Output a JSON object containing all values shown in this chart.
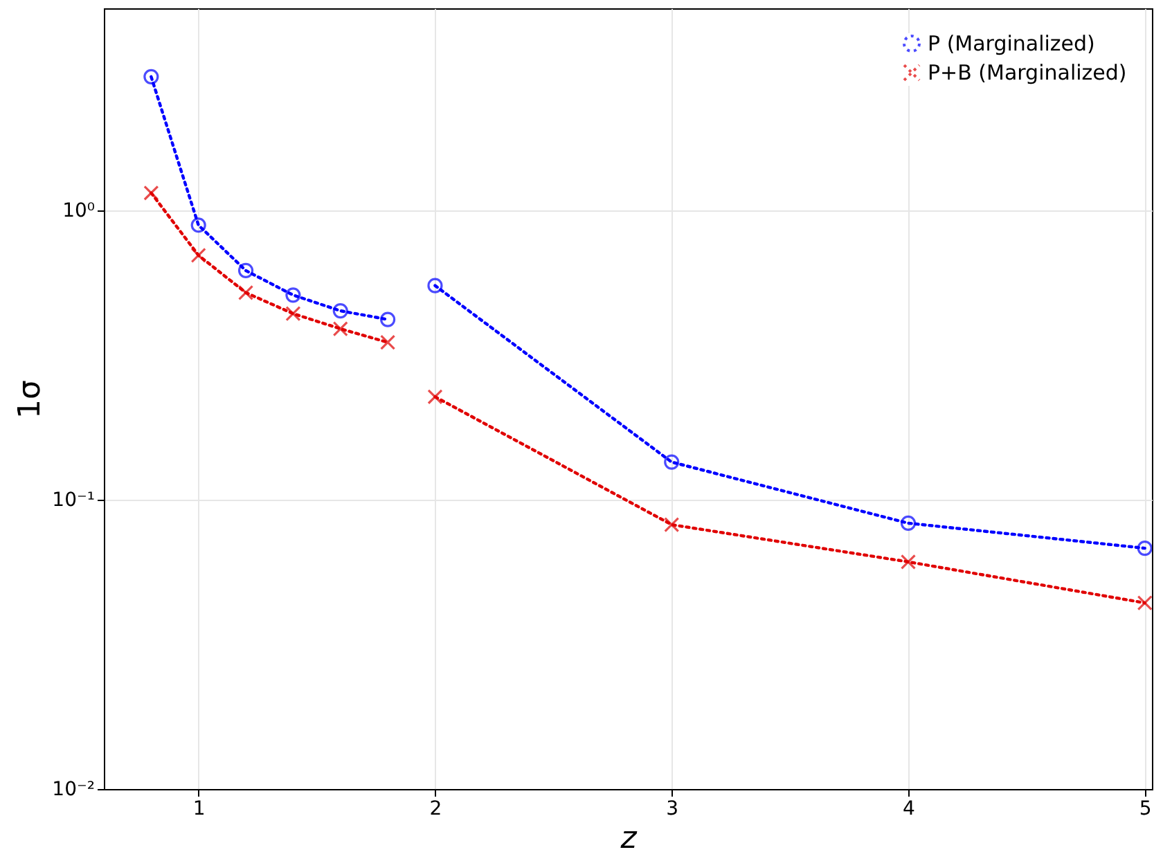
{
  "chart_data": {
    "type": "line",
    "xlabel": "z",
    "ylabel": "1σ",
    "xlim": [
      0.6,
      5.03
    ],
    "xticks": [
      1,
      2,
      3,
      4,
      5
    ],
    "ylim": [
      0.01,
      5
    ],
    "yticks": [
      {
        "value": 0.01,
        "label": "10⁻²"
      },
      {
        "value": 0.1,
        "label": "10⁻¹"
      },
      {
        "value": 1,
        "label": "10⁰"
      }
    ],
    "log": "y",
    "grid": true,
    "legend": "top right",
    "line_style": "dotted",
    "series": [
      {
        "name": "P (Marginalized)",
        "color": "#0000ff",
        "marker": "circle",
        "x": [
          0.8,
          1.0,
          1.2,
          1.4,
          1.6,
          1.8,
          1.9,
          2,
          3,
          4,
          5
        ],
        "values": [
          2.9,
          0.89,
          0.62,
          0.51,
          0.45,
          0.42,
          null,
          0.55,
          0.135,
          0.083,
          0.068
        ]
      },
      {
        "name": "P+B (Marginalized)",
        "color": "#e00000",
        "marker": "cross",
        "x": [
          0.8,
          1.0,
          1.2,
          1.4,
          1.6,
          1.8,
          1.9,
          2,
          3,
          4,
          5
        ],
        "values": [
          1.15,
          0.7,
          0.52,
          0.44,
          0.39,
          0.35,
          null,
          0.227,
          0.082,
          0.061,
          0.044
        ]
      }
    ]
  }
}
